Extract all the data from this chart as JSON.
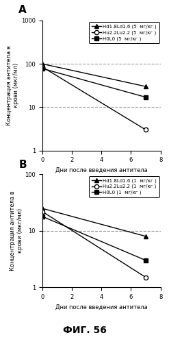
{
  "panel_A": {
    "title": "A",
    "series": [
      {
        "label": "Hd1.8Ld1.6 (5  мг/кг )",
        "x": [
          0,
          7
        ],
        "y": [
          100,
          30
        ],
        "marker": "^",
        "color": "black",
        "linestyle": "-",
        "markerfacecolor": "black"
      },
      {
        "label": "Hu2.2Lu2.2 (5  мг/кг )",
        "x": [
          0,
          7
        ],
        "y": [
          85,
          3
        ],
        "marker": "o",
        "color": "black",
        "linestyle": "-",
        "markerfacecolor": "white"
      },
      {
        "label": "H0L0 (5  мг/кг )",
        "x": [
          0,
          7
        ],
        "y": [
          78,
          17
        ],
        "marker": "s",
        "color": "black",
        "linestyle": "-",
        "markerfacecolor": "black"
      }
    ],
    "hlines": [
      100,
      10
    ],
    "ylim": [
      1,
      1000
    ],
    "yticks": [
      1,
      10,
      100,
      1000
    ],
    "xlim": [
      0,
      8
    ],
    "xticks": [
      0,
      2,
      4,
      6,
      8
    ],
    "xlabel": "Дни после введения антитела",
    "ylabel": "Концентрация антитела в\nкрови (мкг/мл)"
  },
  "panel_B": {
    "title": "B",
    "series": [
      {
        "label": "Hd1.8Ld1.6 (1  мг/кг )",
        "x": [
          0,
          7
        ],
        "y": [
          25,
          8
        ],
        "marker": "^",
        "color": "black",
        "linestyle": "-",
        "markerfacecolor": "black"
      },
      {
        "label": "Hu2.2Lu2.2 (1  мг/кг )",
        "x": [
          0,
          7
        ],
        "y": [
          22,
          1.5
        ],
        "marker": "o",
        "color": "black",
        "linestyle": "-",
        "markerfacecolor": "white"
      },
      {
        "label": "H0L0 (1  мг/кг )",
        "x": [
          0,
          7
        ],
        "y": [
          18,
          3
        ],
        "marker": "s",
        "color": "black",
        "linestyle": "-",
        "markerfacecolor": "black"
      }
    ],
    "hlines": [
      10
    ],
    "ylim": [
      1,
      100
    ],
    "yticks": [
      1,
      10,
      100
    ],
    "xlim": [
      0,
      8
    ],
    "xticks": [
      0,
      2,
      4,
      6,
      8
    ],
    "xlabel": "Дни после введения антитела",
    "ylabel": "Концентрация антитела в\nкрови (мкг/мл)"
  },
  "fig_label": "ФИГ. 56",
  "background_color": "#ffffff"
}
